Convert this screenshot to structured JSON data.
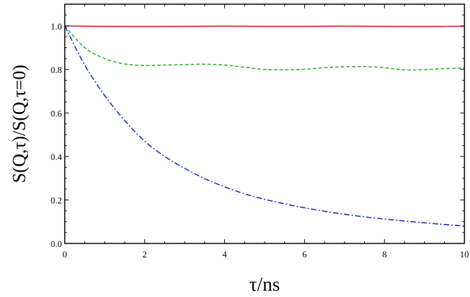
{
  "chart_data": {
    "type": "line",
    "xlabel": "τ/ns",
    "ylabel": "S(Q,τ)/S(Q,τ=0)",
    "xlim": [
      0,
      10
    ],
    "ylim": [
      0,
      1.1
    ],
    "xticks": [
      0,
      2,
      4,
      6,
      8,
      10
    ],
    "yticks": [
      0.0,
      0.2,
      0.4,
      0.6,
      0.8,
      1.0
    ],
    "xtick_labels": [
      "0",
      "2",
      "4",
      "6",
      "8",
      "10"
    ],
    "ytick_labels": [
      "0.0",
      "0.2",
      "0.4",
      "0.6",
      "0.8",
      "1.0"
    ],
    "grid": false,
    "legend": "none",
    "series": [
      {
        "color": "#d42020",
        "style": "solid",
        "x": [
          0,
          1,
          2,
          3,
          4,
          5,
          6,
          7,
          8,
          9,
          10
        ],
        "y": [
          1.0,
          0.998,
          0.997,
          0.998,
          0.999,
          0.998,
          0.998,
          0.999,
          0.998,
          0.997,
          0.999
        ]
      },
      {
        "color": "#2db52d",
        "style": "dashed",
        "x": [
          0,
          0.5,
          1,
          1.5,
          2,
          2.5,
          3,
          3.5,
          4,
          4.5,
          5,
          5.5,
          6,
          6.5,
          7,
          7.5,
          8,
          8.5,
          9,
          9.5,
          10
        ],
        "y": [
          1.0,
          0.9,
          0.85,
          0.825,
          0.818,
          0.82,
          0.822,
          0.824,
          0.82,
          0.81,
          0.8,
          0.798,
          0.801,
          0.808,
          0.812,
          0.813,
          0.808,
          0.798,
          0.799,
          0.804,
          0.806
        ]
      },
      {
        "color": "#1f2fc8",
        "style": "dashdot",
        "x": [
          0,
          0.5,
          1,
          1.5,
          2,
          2.5,
          3,
          3.5,
          4,
          4.5,
          5,
          5.5,
          6,
          6.5,
          7,
          7.5,
          8,
          8.5,
          9,
          9.5,
          10
        ],
        "y": [
          1.0,
          0.82,
          0.68,
          0.565,
          0.47,
          0.4,
          0.345,
          0.298,
          0.26,
          0.228,
          0.203,
          0.182,
          0.164,
          0.148,
          0.134,
          0.122,
          0.112,
          0.103,
          0.095,
          0.087,
          0.08
        ]
      }
    ]
  }
}
